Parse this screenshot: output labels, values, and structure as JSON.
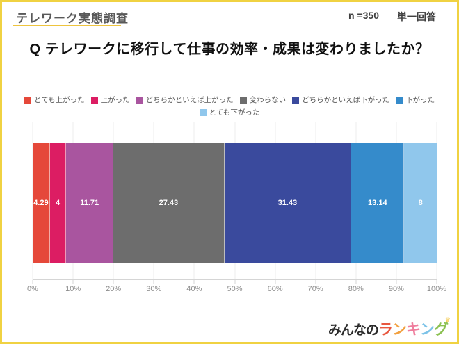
{
  "frame": {
    "border_color": "#f0d242",
    "title_underline_color": "#eec43e"
  },
  "header": {
    "survey_title": "テレワーク実態調査",
    "sample_size": "n =350",
    "answer_type": "単一回答"
  },
  "question": "Q テレワークに移行して仕事の効率・成果は変わりましたか？",
  "chart_data": {
    "type": "bar",
    "orientation": "horizontal-stacked",
    "unit": "percent",
    "title": "テレワークに移行して仕事の効率・成果は変わりましたか？",
    "categories": [
      "とても上がった",
      "上がった",
      "どちらかといえば上がった",
      "変わらない",
      "どちらかといえば下がった",
      "下がった",
      "とても下がった"
    ],
    "values": [
      4.29,
      4,
      11.71,
      27.43,
      31.43,
      13.14,
      8
    ],
    "segments": [
      {
        "label": "とても上がった",
        "value": 4.29,
        "display": "4.29",
        "color": "#e5483a"
      },
      {
        "label": "上がった",
        "value": 4,
        "display": "4",
        "color": "#dc1d63"
      },
      {
        "label": "どちらかといえば上がった",
        "value": 11.71,
        "display": "11.71",
        "color": "#a9559f"
      },
      {
        "label": "変わらない",
        "value": 27.43,
        "display": "27.43",
        "color": "#6d6d6d"
      },
      {
        "label": "どちらかといえば下がった",
        "value": 31.43,
        "display": "31.43",
        "color": "#3a4a9d"
      },
      {
        "label": "下がった",
        "value": 13.14,
        "display": "13.14",
        "color": "#358bcb"
      },
      {
        "label": "とても下がった",
        "value": 8,
        "display": "8",
        "color": "#90c7ec"
      }
    ],
    "x_ticks": [
      "0%",
      "10%",
      "20%",
      "30%",
      "40%",
      "50%",
      "60%",
      "70%",
      "80%",
      "90%",
      "100%"
    ],
    "xlim": [
      0,
      100
    ],
    "grid": true,
    "legend_position": "top",
    "legend_row_split": 6,
    "value_label_color": "#ffffff"
  },
  "footer": {
    "logo_prefix": "みんなの",
    "logo_letters": [
      {
        "char": "ラ",
        "color": "#e8573f"
      },
      {
        "char": "ン",
        "color": "#f2a140"
      },
      {
        "char": "キ",
        "color": "#ef7d9d"
      },
      {
        "char": "ン",
        "color": "#7dc3e8"
      },
      {
        "char": "グ",
        "color": "#8cc152"
      }
    ],
    "crown_glyph": "♛",
    "crown_color": "#f2c43d"
  }
}
